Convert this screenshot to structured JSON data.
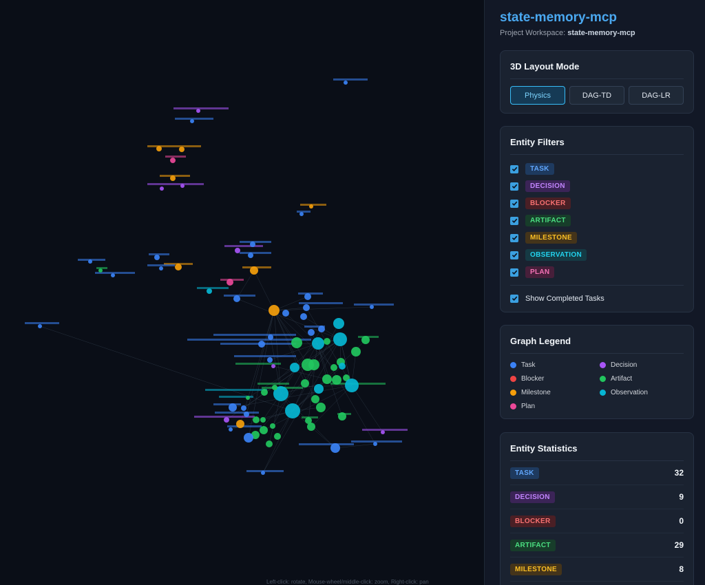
{
  "graph": {
    "hint": "Left-click: rotate, Mouse-wheel/middle-click: zoom, Right-click: pan"
  },
  "colors": {
    "task": "#3b82f6",
    "decision": "#a855f7",
    "blocker": "#ef4444",
    "artifact": "#22c55e",
    "milestone": "#f59e0b",
    "observation": "#06b6d4",
    "plan": "#ec4899"
  },
  "sidebar": {
    "title": "state-memory-mcp",
    "workspace_label": "Project Workspace:",
    "workspace_name": "state-memory-mcp",
    "layout": {
      "title": "3D Layout Mode",
      "buttons": [
        {
          "label": "Physics",
          "active": true
        },
        {
          "label": "DAG-TD",
          "active": false
        },
        {
          "label": "DAG-LR",
          "active": false
        }
      ]
    },
    "filters": {
      "title": "Entity Filters",
      "items": [
        {
          "label": "TASK",
          "checked": true
        },
        {
          "label": "DECISION",
          "checked": true
        },
        {
          "label": "BLOCKER",
          "checked": true
        },
        {
          "label": "ARTIFACT",
          "checked": true
        },
        {
          "label": "MILESTONE",
          "checked": true
        },
        {
          "label": "OBSERVATION",
          "checked": true
        },
        {
          "label": "PLAN",
          "checked": true
        }
      ],
      "completed_label": "Show Completed Tasks",
      "completed_checked": true
    },
    "legend": {
      "title": "Graph Legend",
      "items": [
        "Task",
        "Decision",
        "Blocker",
        "Artifact",
        "Milestone",
        "Observation",
        "Plan"
      ]
    },
    "stats": {
      "title": "Entity Statistics",
      "rows": [
        {
          "label": "TASK",
          "count": "32"
        },
        {
          "label": "DECISION",
          "count": "9"
        },
        {
          "label": "BLOCKER",
          "count": "0"
        },
        {
          "label": "ARTIFACT",
          "count": "29"
        },
        {
          "label": "MILESTONE",
          "count": "8"
        }
      ]
    }
  }
}
